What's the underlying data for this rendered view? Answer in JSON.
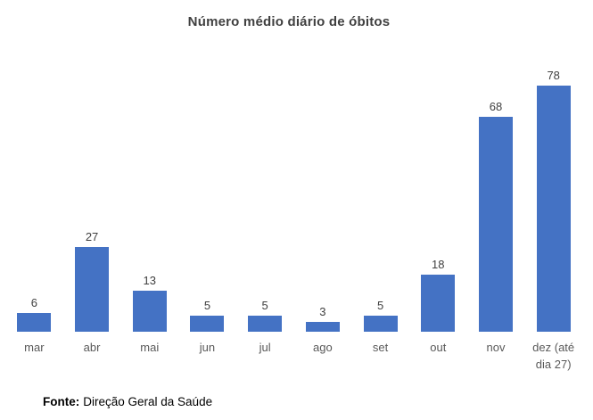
{
  "chart_data": {
    "type": "bar",
    "title": "Número médio diário de óbitos",
    "categories": [
      "mar",
      "abr",
      "mai",
      "jun",
      "jul",
      "ago",
      "set",
      "out",
      "nov",
      "dez (até dia 27)"
    ],
    "values": [
      6,
      27,
      13,
      5,
      5,
      3,
      5,
      18,
      68,
      78
    ],
    "xlabel": "",
    "ylabel": "",
    "ylim": [
      0,
      80
    ],
    "grid": false,
    "legend": "none",
    "data_labels": true,
    "axis_line": false,
    "bar_color": "#4472C4",
    "title_color": "#404040",
    "value_label_color": "#404040",
    "category_label_color": "#595959"
  },
  "source": {
    "label": "Fonte:",
    "text": "Direção Geral da Saúde"
  }
}
